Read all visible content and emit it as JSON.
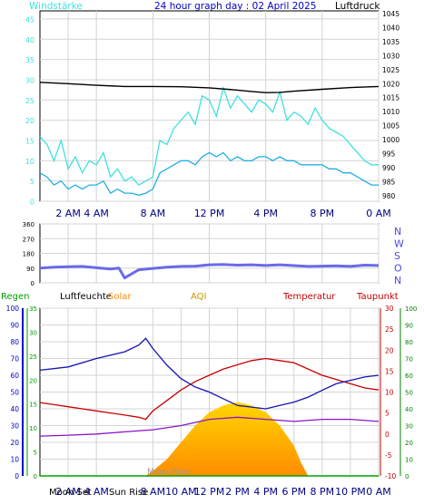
{
  "header": {
    "wind_label": "Windstärke",
    "title": "24 hour graph day : 02 April 2025",
    "pressure_label": "Luftdruck"
  },
  "legend": {
    "rain": "Regen",
    "humidity": "Luftfeuchte",
    "solar": "Solar",
    "aqi": "AQI",
    "temperature": "Temperatur",
    "dewpoint": "Taupunkt"
  },
  "astro": {
    "moon_set": "Moon Set",
    "sun_rise": "Sun Rise",
    "moon_rise": "Moon Rise"
  },
  "colors": {
    "wind_gust": "#40e0e0",
    "wind_avg": "#20b0e0",
    "pressure": "#000000",
    "direction": "#6a6ae8",
    "humidity": "#1414b4",
    "temperature": "#c80000",
    "dewpoint": "#8a14c8",
    "rain": "#00a000",
    "solar_top": "#ffd700",
    "solar_bottom": "#ff8c00",
    "wind_axis": "#40e0e0",
    "pressure_axis": "#000000",
    "direction_axis": "#4a4ae0",
    "temp_axis": "#c80000",
    "rain_axis": "#00a000",
    "hum_axis": "#0000c8"
  },
  "chart_data": [
    {
      "type": "line",
      "title": "24 hour graph day : 02 April 2025",
      "x_ticks": [
        "2 AM",
        "4 AM",
        "8 AM",
        "12 PM",
        "4 PM",
        "8 PM",
        "0 AM"
      ],
      "x_tick_hours": [
        2,
        4,
        8,
        12,
        16,
        20,
        24
      ],
      "ylabel_left": "Windstärke",
      "ylim_left": [
        0,
        47
      ],
      "yticks_left": [
        0,
        5,
        10,
        15,
        20,
        25,
        30,
        35,
        40,
        45
      ],
      "ylabel_right": "Luftdruck",
      "ylim_right": [
        978,
        1046
      ],
      "yticks_right": [
        980,
        985,
        990,
        995,
        1000,
        1005,
        1010,
        1015,
        1020,
        1025,
        1030,
        1035,
        1040,
        1045
      ],
      "series": [
        {
          "name": "",
          "axis": "left",
          "hours": [
            0,
            0.5,
            1,
            1.5,
            2,
            2.5,
            3,
            3.5,
            4,
            4.5,
            5,
            5.5,
            6,
            6.5,
            7,
            7.5,
            8,
            8.5,
            9,
            9.5,
            10,
            10.5,
            11,
            11.5,
            12,
            12.5,
            13,
            13.5,
            14,
            14.5,
            15,
            15.5,
            16,
            16.5,
            17,
            17.5,
            18,
            18.5,
            19,
            19.5,
            20,
            20.5,
            21,
            21.5,
            22,
            22.5,
            23,
            23.5,
            24
          ],
          "values": [
            16,
            14,
            10,
            15,
            8,
            11,
            7,
            10,
            9,
            12,
            6,
            8,
            5,
            6,
            4,
            5,
            6,
            15,
            14,
            18,
            20,
            22,
            19,
            26,
            25,
            21,
            28,
            23,
            26,
            24,
            22,
            25,
            24,
            22,
            27,
            20,
            22,
            21,
            19,
            23,
            20,
            18,
            17,
            16,
            14,
            12,
            10,
            9,
            9
          ]
        },
        {
          "name": "",
          "axis": "left",
          "hours": [
            0,
            0.5,
            1,
            1.5,
            2,
            2.5,
            3,
            3.5,
            4,
            4.5,
            5,
            5.5,
            6,
            6.5,
            7,
            7.5,
            8,
            8.5,
            9,
            9.5,
            10,
            10.5,
            11,
            11.5,
            12,
            12.5,
            13,
            13.5,
            14,
            14.5,
            15,
            15.5,
            16,
            16.5,
            17,
            17.5,
            18,
            18.5,
            19,
            19.5,
            20,
            20.5,
            21,
            21.5,
            22,
            22.5,
            23,
            23.5,
            24
          ],
          "values": [
            7,
            6,
            4,
            5,
            3,
            4,
            3,
            4,
            4,
            5,
            2,
            3,
            2,
            2,
            1.5,
            2,
            3,
            7,
            8,
            9,
            10,
            10,
            9,
            11,
            12,
            11,
            12,
            10,
            11,
            10,
            10,
            11,
            11,
            10,
            11,
            10,
            10,
            9,
            9,
            9,
            9,
            8,
            8,
            7,
            7,
            6,
            5,
            4,
            4
          ]
        },
        {
          "name": "",
          "axis": "right",
          "hours": [
            0,
            2,
            4,
            6,
            8,
            10,
            12,
            14,
            15,
            16,
            17,
            18,
            20,
            22,
            24
          ],
          "values": [
            1020.5,
            1020.0,
            1019.4,
            1019.0,
            1019.0,
            1018.9,
            1018.5,
            1017.7,
            1017.2,
            1016.8,
            1016.9,
            1017.3,
            1018.0,
            1018.6,
            1019.0
          ]
        }
      ]
    },
    {
      "type": "line",
      "x_ticks": [
        "2 AM",
        "4 AM",
        "8 AM",
        "12 PM",
        "4 PM",
        "8 PM",
        "0 AM"
      ],
      "x_tick_hours": [
        2,
        4,
        8,
        12,
        16,
        20,
        24
      ],
      "ylim_left": [
        0,
        360
      ],
      "yticks_left": [
        0,
        90,
        180,
        270,
        360
      ],
      "right_labels": [
        "N",
        "W",
        "S",
        "O",
        "N"
      ],
      "series": [
        {
          "name": "",
          "hours": [
            0,
            1,
            2,
            3,
            4,
            5,
            5.6,
            6,
            7,
            8,
            9,
            10,
            11,
            12,
            13,
            14,
            15,
            16,
            17,
            18,
            19,
            20,
            21,
            22,
            23,
            24
          ],
          "values": [
            90,
            95,
            98,
            100,
            92,
            85,
            90,
            30,
            80,
            88,
            95,
            100,
            102,
            110,
            112,
            108,
            110,
            106,
            110,
            105,
            100,
            102,
            104,
            100,
            108,
            106
          ]
        }
      ]
    },
    {
      "type": "line",
      "x_ticks": [
        "2 AM",
        "4 AM",
        "8 AM",
        "10 AM",
        "12 PM",
        "2 PM",
        "4 PM",
        "6 PM",
        "8 PM",
        "10 PM",
        "0 AM"
      ],
      "x_tick_hours": [
        2,
        4,
        8,
        10,
        12,
        14,
        16,
        18,
        20,
        22,
        24
      ],
      "ylim_humidity": [
        0,
        100
      ],
      "yticks_humidity": [
        0,
        10,
        20,
        30,
        40,
        50,
        60,
        70,
        80,
        90,
        100
      ],
      "ylim_rain": [
        0,
        35
      ],
      "yticks_rain": [
        0,
        5,
        10,
        15,
        20,
        25,
        30,
        35
      ],
      "ylim_temperature": [
        -10,
        30
      ],
      "yticks_temperature": [
        -10,
        -5,
        0,
        5,
        10,
        15,
        20,
        25,
        30
      ],
      "ylim_solar": [
        0,
        100
      ],
      "yticks_solar": [
        0,
        10,
        20,
        30,
        40,
        50,
        60,
        70,
        80,
        90,
        100
      ],
      "series": [
        {
          "name": "Luftfeuchte",
          "axis": "humidity",
          "hours": [
            0,
            2,
            4,
            6,
            7,
            7.5,
            8,
            9,
            10,
            11,
            12,
            13,
            14,
            15,
            16,
            17,
            18,
            19,
            20,
            21,
            22,
            23,
            24
          ],
          "values": [
            63,
            65,
            70,
            74,
            78,
            82,
            76,
            66,
            58,
            53,
            50,
            46,
            42,
            41,
            40,
            42,
            44,
            47,
            51,
            55,
            57,
            59,
            60
          ]
        },
        {
          "name": "Temperatur",
          "axis": "temperature",
          "hours": [
            0,
            1,
            2,
            3,
            4,
            5,
            6,
            7,
            7.5,
            8,
            9,
            10,
            11,
            12,
            13,
            14,
            15,
            16,
            17,
            18,
            19,
            20,
            21,
            22,
            23,
            24
          ],
          "values": [
            7.5,
            7,
            6.5,
            6,
            5.5,
            5,
            4.5,
            4,
            3.5,
            5.5,
            8,
            10.5,
            12.5,
            14,
            15.5,
            16.5,
            17.5,
            18,
            17.5,
            17,
            15.5,
            14,
            13,
            12,
            11,
            10.5
          ]
        },
        {
          "name": "Taupunkt",
          "axis": "temperature",
          "hours": [
            0,
            2,
            4,
            6,
            8,
            10,
            12,
            14,
            16,
            18,
            20,
            22,
            24
          ],
          "values": [
            -0.5,
            -0.3,
            0,
            0.5,
            1,
            2,
            3.5,
            4,
            3.5,
            3,
            3.5,
            3.5,
            3
          ]
        },
        {
          "name": "Solar",
          "axis": "solar",
          "hours": [
            7.5,
            8,
            9,
            10,
            11,
            12,
            13,
            14,
            15,
            16,
            17,
            18,
            18.5,
            19
          ],
          "values": [
            0,
            3,
            10,
            20,
            30,
            38,
            42,
            44,
            42,
            38,
            30,
            18,
            8,
            0
          ]
        },
        {
          "name": "Regen",
          "axis": "rain",
          "hours": [
            0,
            24
          ],
          "values": [
            0,
            0
          ]
        }
      ]
    }
  ]
}
